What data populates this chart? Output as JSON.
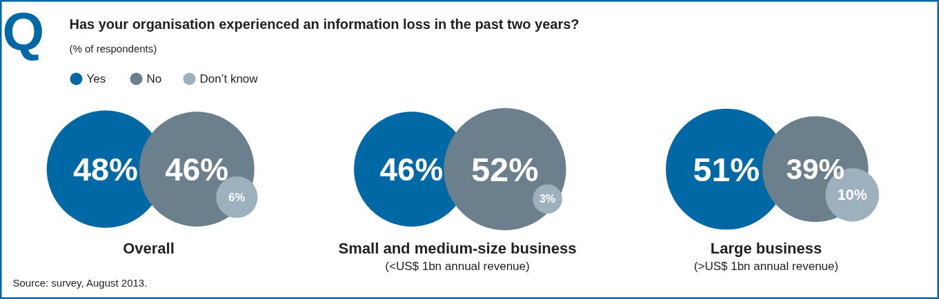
{
  "chart_data": {
    "type": "other",
    "title": "Has your organisation experienced an information loss in the past two years?",
    "subtitle": "(% of respondents)",
    "legend": "top left",
    "categories": [
      "Overall",
      "Small and medium-size business",
      "Large business"
    ],
    "series": [
      {
        "name": "Yes",
        "color": "#0068a5",
        "values": [
          48,
          46,
          51
        ],
        "value_labels": [
          "48%",
          "46%",
          "51%"
        ]
      },
      {
        "name": "No",
        "color": "#6b7f8c",
        "values": [
          46,
          52,
          39
        ],
        "value_labels": [
          "46%",
          "52%",
          "39%"
        ]
      },
      {
        "name": "Don’t know",
        "color": "#9cb0bd",
        "values": [
          6,
          3,
          10
        ],
        "value_labels": [
          "6%",
          "3%",
          "10%"
        ]
      }
    ],
    "annotations": [
      "Q",
      {
        "text": "(<US$ 1bn annual revenue)",
        "x": "Small and medium-size business"
      },
      {
        "text": "(>US$ 1bn annual revenue)",
        "x": "Large business"
      },
      "Source: survey, August 2013."
    ]
  }
}
